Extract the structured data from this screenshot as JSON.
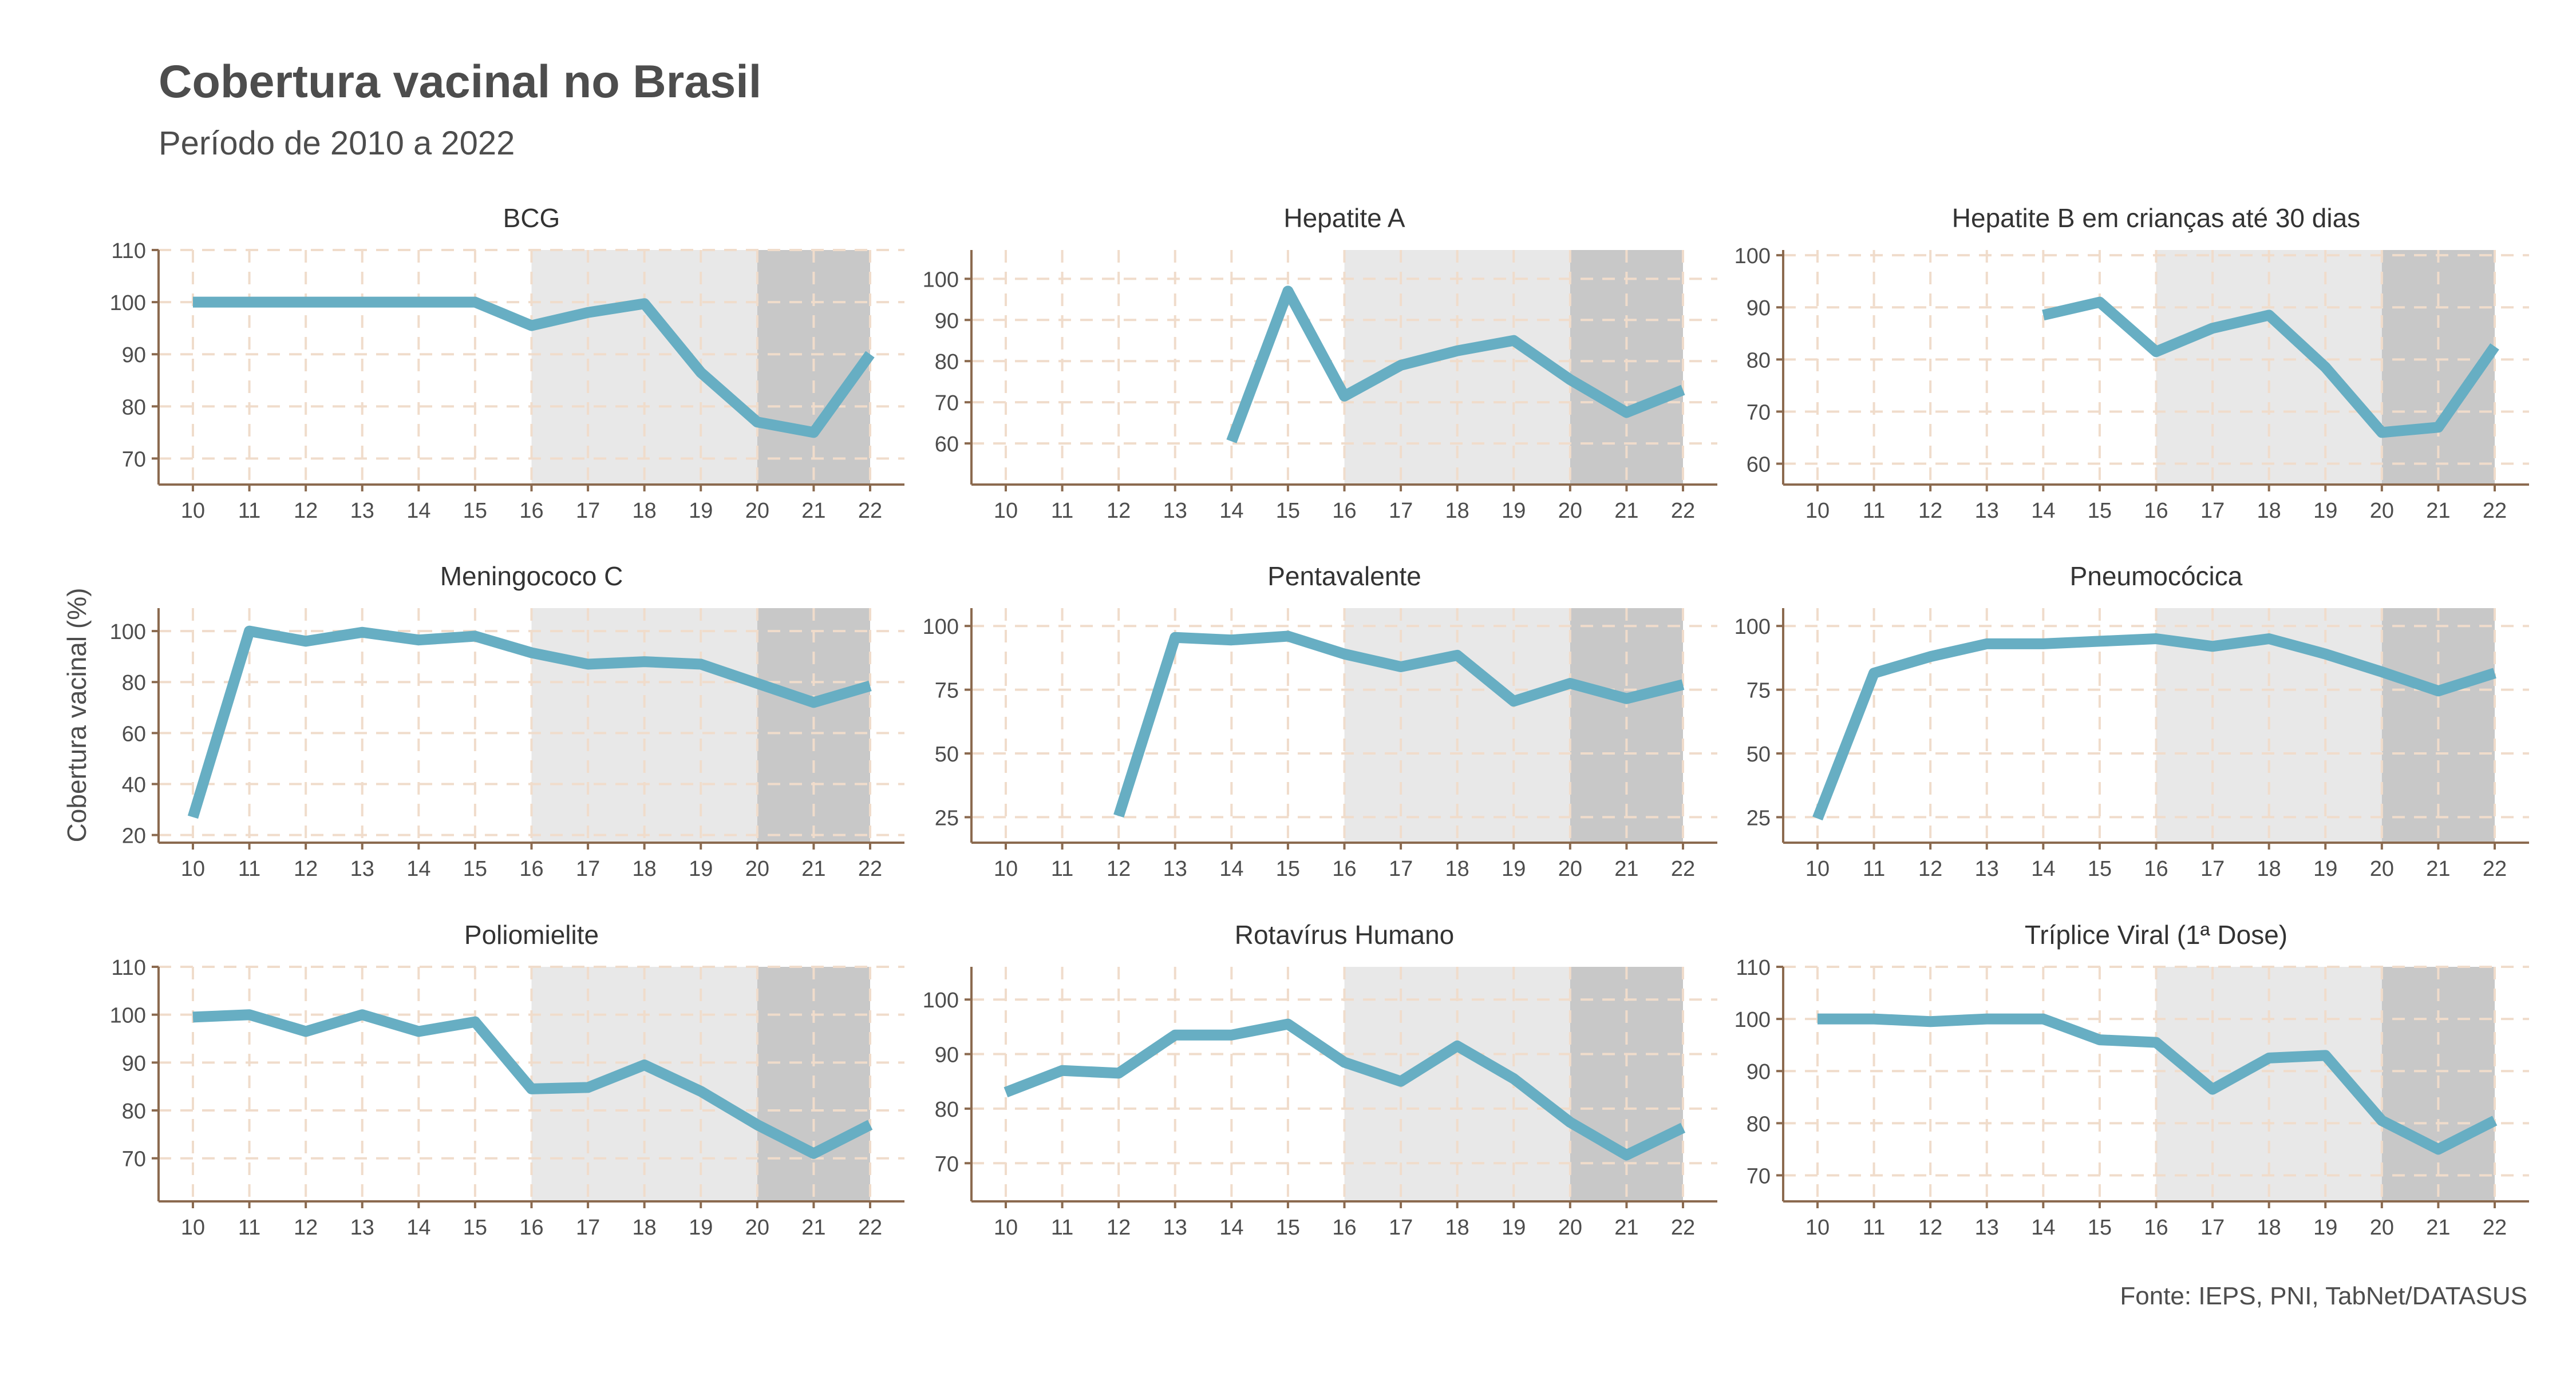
{
  "title": "Cobertura vacinal no Brasil",
  "subtitle": "Período de 2010 a 2022",
  "ylabel": "Cobertura vacinal (%)",
  "caption": "Fonte: IEPS, PNI, TabNet/DATASUS",
  "colors": {
    "line": "#67AEC3",
    "band_light": "#E8E8E8",
    "band_dark": "#C8C8C8",
    "grid": "#F0DCCB",
    "axis": "#8B6A4F",
    "text": "#4D4D4D"
  },
  "chart_data": {
    "type": "line",
    "grid": true,
    "x": [
      10,
      11,
      12,
      13,
      14,
      15,
      16,
      17,
      18,
      19,
      20,
      21,
      22
    ],
    "shaded_ranges": [
      {
        "from": 16,
        "to": 20,
        "tone": "light"
      },
      {
        "from": 20,
        "to": 22,
        "tone": "dark"
      }
    ],
    "panels": [
      {
        "name": "BCG",
        "ylim": [
          65,
          110
        ],
        "yticks": [
          70,
          80,
          90,
          100,
          110
        ],
        "values": [
          100,
          100,
          100,
          100,
          100,
          100,
          95.5,
          98,
          99.7,
          86.5,
          77,
          75,
          90
        ]
      },
      {
        "name": "Hepatite A",
        "ylim": [
          50,
          107
        ],
        "yticks": [
          60,
          70,
          80,
          90,
          100
        ],
        "values": [
          null,
          null,
          null,
          null,
          60.5,
          97,
          71.5,
          79,
          82.5,
          85,
          75.5,
          67.5,
          73
        ]
      },
      {
        "name": "Hepatite B em crianças até 30 dias",
        "ylim": [
          56,
          101
        ],
        "yticks": [
          60,
          70,
          80,
          90,
          100
        ],
        "values": [
          null,
          null,
          null,
          null,
          88.5,
          91,
          81.5,
          86,
          88.5,
          78.5,
          66,
          67,
          82.5
        ]
      },
      {
        "name": "Meningococo C",
        "ylim": [
          17,
          109
        ],
        "yticks": [
          20,
          40,
          60,
          80,
          100
        ],
        "values": [
          27,
          100,
          96,
          99.5,
          96.5,
          98,
          91.5,
          87,
          88,
          87,
          79.5,
          72,
          78.5
        ]
      },
      {
        "name": "Pentavalente",
        "ylim": [
          15,
          107
        ],
        "yticks": [
          25,
          50,
          75,
          100
        ],
        "values": [
          null,
          null,
          25.5,
          95.5,
          94.5,
          96,
          89,
          84,
          88.5,
          70.5,
          77.5,
          71.5,
          77
        ]
      },
      {
        "name": "Pneumocócica",
        "ylim": [
          15,
          107
        ],
        "yticks": [
          25,
          50,
          75,
          100
        ],
        "values": [
          24.5,
          81.5,
          88,
          93,
          93,
          94,
          95,
          92,
          95,
          89,
          82,
          74.5,
          81.5
        ]
      },
      {
        "name": "Poliomielite",
        "ylim": [
          61,
          110
        ],
        "yticks": [
          70,
          80,
          90,
          100,
          110
        ],
        "values": [
          99.5,
          100,
          96.5,
          100,
          96.5,
          98.5,
          84.5,
          84.8,
          89.5,
          84,
          77,
          71,
          77
        ]
      },
      {
        "name": "Rotavírus Humano",
        "ylim": [
          63,
          106
        ],
        "yticks": [
          70,
          80,
          90,
          100
        ],
        "values": [
          83,
          87,
          86.5,
          93.5,
          93.5,
          95.5,
          88.5,
          85,
          91.5,
          85.5,
          77.5,
          71.5,
          76.5
        ]
      },
      {
        "name": "Tríplice Viral (1ª Dose)",
        "ylim": [
          65,
          110
        ],
        "yticks": [
          70,
          80,
          90,
          100,
          110
        ],
        "values": [
          100,
          100,
          99.5,
          100,
          100,
          96,
          95.5,
          86.5,
          92.5,
          93,
          80.5,
          75,
          80.5
        ]
      }
    ]
  }
}
